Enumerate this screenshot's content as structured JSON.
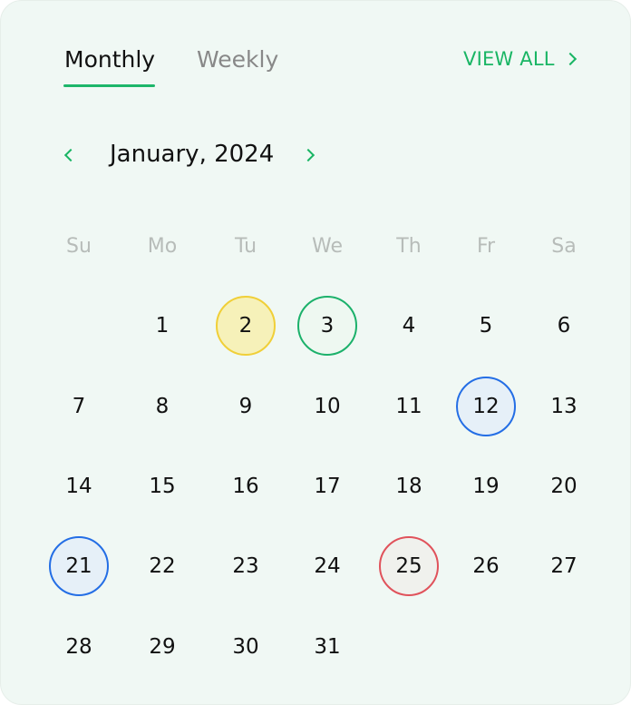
{
  "tabs": [
    {
      "label": "Monthly",
      "active": true
    },
    {
      "label": "Weekly",
      "active": false
    }
  ],
  "view_all": {
    "label": "VIEW ALL",
    "icon": "chevron-right-icon"
  },
  "month_nav": {
    "label": "January, 2024",
    "prev_icon": "chevron-left-icon",
    "next_icon": "chevron-right-icon"
  },
  "weekdays": [
    "Su",
    "Mo",
    "Tu",
    "We",
    "Th",
    "Fr",
    "Sa"
  ],
  "days": [
    {
      "n": "1",
      "col": 1,
      "row": 0
    },
    {
      "n": "2",
      "col": 2,
      "row": 0,
      "mark": "yellow"
    },
    {
      "n": "3",
      "col": 3,
      "row": 0,
      "mark": "green"
    },
    {
      "n": "4",
      "col": 4,
      "row": 0
    },
    {
      "n": "5",
      "col": 5,
      "row": 0
    },
    {
      "n": "6",
      "col": 6,
      "row": 0
    },
    {
      "n": "7",
      "col": 0,
      "row": 1
    },
    {
      "n": "8",
      "col": 1,
      "row": 1
    },
    {
      "n": "9",
      "col": 2,
      "row": 1
    },
    {
      "n": "10",
      "col": 3,
      "row": 1
    },
    {
      "n": "11",
      "col": 4,
      "row": 1
    },
    {
      "n": "12",
      "col": 5,
      "row": 1,
      "mark": "blue"
    },
    {
      "n": "13",
      "col": 6,
      "row": 1
    },
    {
      "n": "14",
      "col": 0,
      "row": 2
    },
    {
      "n": "15",
      "col": 1,
      "row": 2
    },
    {
      "n": "16",
      "col": 2,
      "row": 2
    },
    {
      "n": "17",
      "col": 3,
      "row": 2
    },
    {
      "n": "18",
      "col": 4,
      "row": 2
    },
    {
      "n": "19",
      "col": 5,
      "row": 2
    },
    {
      "n": "20",
      "col": 6,
      "row": 2
    },
    {
      "n": "21",
      "col": 0,
      "row": 3,
      "mark": "blue"
    },
    {
      "n": "22",
      "col": 1,
      "row": 3
    },
    {
      "n": "23",
      "col": 2,
      "row": 3
    },
    {
      "n": "24",
      "col": 3,
      "row": 3
    },
    {
      "n": "25",
      "col": 4,
      "row": 3,
      "mark": "red"
    },
    {
      "n": "26",
      "col": 5,
      "row": 3
    },
    {
      "n": "27",
      "col": 6,
      "row": 3
    },
    {
      "n": "28",
      "col": 0,
      "row": 4
    },
    {
      "n": "29",
      "col": 1,
      "row": 4
    },
    {
      "n": "30",
      "col": 2,
      "row": 4
    },
    {
      "n": "31",
      "col": 3,
      "row": 4
    }
  ],
  "colors": {
    "accent": "#1db66a",
    "yellow": "#f0cf38",
    "green": "#1cb16b",
    "blue": "#246ee5",
    "red": "#e0525b"
  }
}
